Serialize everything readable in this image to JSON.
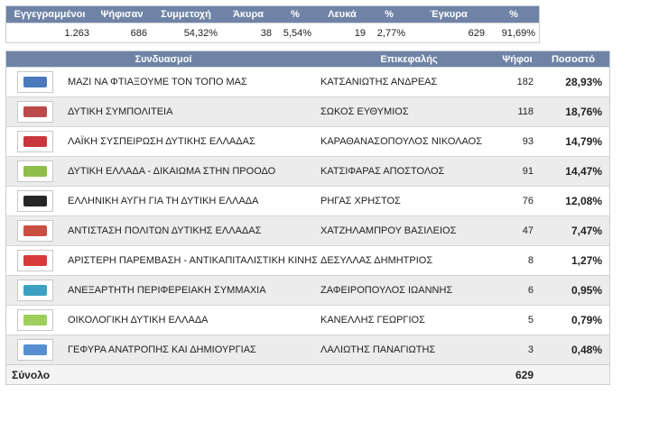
{
  "summary": {
    "headers": [
      "Εγγεγραμμένοι",
      "Ψήφισαν",
      "Συμμετοχή",
      "Άκυρα",
      "%",
      "Λευκά",
      "%",
      "Έγκυρα",
      "%"
    ],
    "values": [
      "1.263",
      "686",
      "54,32%",
      "38",
      "5,54%",
      "19",
      "2,77%",
      "629",
      "91,69%"
    ]
  },
  "results": {
    "headers": {
      "party": "Συνδυασμοί",
      "leader": "Επικεφαλής",
      "votes": "Ψήφοι",
      "pct": "Ποσοστό"
    },
    "rows": [
      {
        "party": "ΜΑΖΙ ΝΑ ΦΤΙΑΞΟΥΜΕ ΤΟΝ ΤΟΠΟ ΜΑΣ",
        "leader": "ΚΑΤΣΑΝΙΩΤΗΣ ΑΝΔΡΕΑΣ",
        "votes": "182",
        "pct": "28,93%",
        "logo": "mazi-logo",
        "color": "#2a62b0"
      },
      {
        "party": "ΔΥΤΙΚΗ ΣΥΜΠΟΛΙΤΕΙΑ",
        "leader": "ΣΩΚΟΣ ΕΥΘΥΜΙΟΣ",
        "votes": "118",
        "pct": "18,76%",
        "logo": "dytiki-sympoliteia-logo",
        "color": "#b02a2a"
      },
      {
        "party": "ΛΑΪΚΗ ΣΥΣΠΕΙΡΩΣΗ ΔΥΤΙΚΗΣ ΕΛΛΑΔΑΣ",
        "leader": "ΚΑΡΑΘΑΝΑΣΟΠΟΥΛΟΣ ΝΙΚΟΛΑΟΣ",
        "votes": "93",
        "pct": "14,79%",
        "logo": "laiki-syspeirosi-logo",
        "color": "#c0141a"
      },
      {
        "party": "ΔΥΤΙΚΗ ΕΛΛΑΔΑ - ΔΙΚΑΙΩΜΑ ΣΤΗΝ ΠΡΟΟΔΟ",
        "leader": "ΚΑΤΣΙΦΑΡΑΣ ΑΠΟΣΤΟΛΟΣ",
        "votes": "91",
        "pct": "14,47%",
        "logo": "dikaioma-logo",
        "color": "#7cb32b"
      },
      {
        "party": "ΕΛΛΗΝΙΚΗ ΑΥΓΗ ΓΙΑ ΤΗ ΔΥΤΙΚΗ ΕΛΛΑΔΑ",
        "leader": "ΡΗΓΑΣ ΧΡΗΣΤΟΣ",
        "votes": "76",
        "pct": "12,08%",
        "logo": "elliniki-avgi-logo",
        "color": "#000000"
      },
      {
        "party": "ΑΝΤΙΣΤΑΣΗ ΠΟΛΙΤΩΝ ΔΥΤΙΚΗΣ ΕΛΛΑΔΑΣ",
        "leader": "ΧΑΤΖΗΛΑΜΠΡΟΥ ΒΑΣΙΛΕΙΟΣ",
        "votes": "47",
        "pct": "7,47%",
        "logo": "antistasi-logo",
        "color": "#c03020"
      },
      {
        "party": "ΑΡΙΣΤΕΡΗ ΠΑΡΕΜΒΑΣΗ - ΑΝΤΙΚΑΠΙΤΑΛΙΣΤΙΚΗ ΚΙΝΗΣΗ",
        "leader": "ΔΕΣΥΛΛΑΣ ΔΗΜΗΤΡΙΟΣ",
        "votes": "8",
        "pct": "1,27%",
        "logo": "aristeri-paremvasi-logo",
        "color": "#d01818"
      },
      {
        "party": "ΑΝΕΞΑΡΤΗΤΗ ΠΕΡΙΦΕΡΕΙΑΚΗ ΣΥΜΜΑΧΙΑ",
        "leader": "ΖΑΦΕΙΡΟΠΟΥΛΟΣ ΙΩΑΝΝΗΣ",
        "votes": "6",
        "pct": "0,95%",
        "logo": "symmaxia-logo",
        "color": "#1a8fb8"
      },
      {
        "party": "ΟΙΚΟΛΟΓΙΚΗ ΔΥΤΙΚΗ ΕΛΛΑΔΑ",
        "leader": "ΚΑΝΕΛΛΗΣ ΓΕΩΡΓΙΟΣ",
        "votes": "5",
        "pct": "0,79%",
        "logo": "oikologiki-logo",
        "color": "#8dc63f"
      },
      {
        "party": "ΓΕΦΥΡΑ ΑΝΑΤΡΟΠΗΣ ΚΑΙ ΔΗΜΙΟΥΡΓΙΑΣ",
        "leader": "ΛΑΛΙΩΤΗΣ ΠΑΝΑΓΙΩΤΗΣ",
        "votes": "3",
        "pct": "0,48%",
        "logo": "gefyra-logo",
        "color": "#3a7dc8"
      }
    ],
    "total": {
      "label": "Σύνολο",
      "votes": "629"
    }
  }
}
